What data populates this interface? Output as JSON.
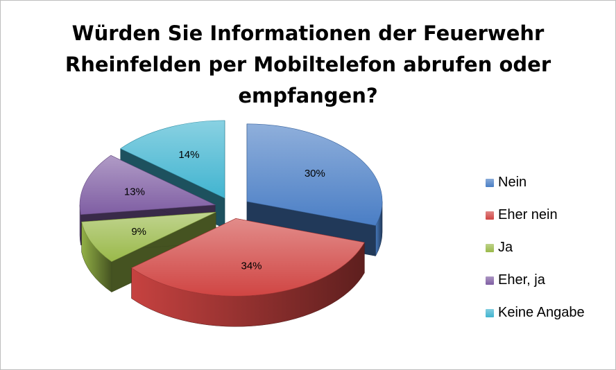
{
  "chart_data": {
    "type": "pie",
    "title": [
      "Würden Sie Informationen der Feuerwehr",
      "Rheinfelden per Mobiltelefon abrufen oder",
      "empfangen?"
    ],
    "categories": [
      "Nein",
      "Eher nein",
      "Ja",
      "Eher, ja",
      "Keine Angabe"
    ],
    "values": [
      30,
      34,
      9,
      13,
      14
    ],
    "labels": [
      "30%",
      "34%",
      "9%",
      "13%",
      "14%"
    ],
    "colors": [
      "#4a7ec5",
      "#d04543",
      "#9ab94a",
      "#7f5ea3",
      "#41b4d0"
    ],
    "legend_position": "right",
    "style": "3d-exploded"
  }
}
